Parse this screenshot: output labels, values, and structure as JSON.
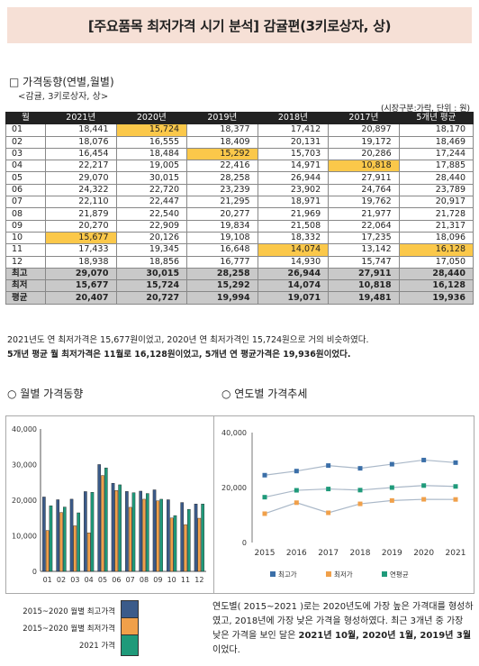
{
  "title": "[주요품목 최저가격 시기 분석] 감귤편(3키로상자, 상)",
  "section1": {
    "heading": "□ 가격동향(연별,월별)",
    "sub": "<감귤, 3키로상자, 상>",
    "unit": "(시장구분:가락, 단위 : 원)"
  },
  "table": {
    "headers": [
      "월",
      "2021년",
      "2020년",
      "2019년",
      "2018년",
      "2017년",
      "5개년 평균"
    ],
    "rows": [
      [
        "01",
        "18,441",
        "15,724",
        "18,377",
        "17,412",
        "20,897",
        "18,170"
      ],
      [
        "02",
        "18,076",
        "16,555",
        "18,409",
        "20,131",
        "19,172",
        "18,469"
      ],
      [
        "03",
        "16,454",
        "18,484",
        "15,292",
        "15,703",
        "20,286",
        "17,244"
      ],
      [
        "04",
        "22,217",
        "19,005",
        "22,416",
        "14,971",
        "10,818",
        "17,885"
      ],
      [
        "05",
        "29,070",
        "30,015",
        "28,258",
        "26,944",
        "27,911",
        "28,440"
      ],
      [
        "06",
        "24,322",
        "22,720",
        "23,239",
        "23,902",
        "24,764",
        "23,789"
      ],
      [
        "07",
        "22,110",
        "22,447",
        "21,295",
        "18,971",
        "19,762",
        "20,917"
      ],
      [
        "08",
        "21,879",
        "22,540",
        "20,277",
        "21,969",
        "21,977",
        "21,728"
      ],
      [
        "09",
        "20,270",
        "22,909",
        "19,834",
        "21,508",
        "22,064",
        "21,317"
      ],
      [
        "10",
        "15,677",
        "20,126",
        "19,108",
        "18,332",
        "17,235",
        "18,096"
      ],
      [
        "11",
        "17,433",
        "19,345",
        "16,648",
        "14,074",
        "13,142",
        "16,128"
      ],
      [
        "12",
        "18,938",
        "18,856",
        "16,777",
        "14,930",
        "15,747",
        "17,050"
      ]
    ],
    "highlights": [
      [
        0,
        2
      ],
      [
        2,
        3
      ],
      [
        3,
        5
      ],
      [
        9,
        1
      ],
      [
        10,
        4
      ],
      [
        10,
        6
      ]
    ],
    "stats": [
      [
        "최고",
        "29,070",
        "30,015",
        "28,258",
        "26,944",
        "27,911",
        "28,440"
      ],
      [
        "최저",
        "15,677",
        "15,724",
        "15,292",
        "14,074",
        "10,818",
        "16,128"
      ],
      [
        "평균",
        "20,407",
        "20,727",
        "19,994",
        "19,071",
        "19,481",
        "19,936"
      ]
    ]
  },
  "notes": {
    "line1": "2021년도 연 최저가격은 15,677원이었고, 2020년 연 최저가격인 15,724원으로 거의 비슷하였다.",
    "line2": "5개년 평균 월 최저가격은 11월로 16,128원이었고, 5개년 연 평균가격은 19,936원이었다."
  },
  "section2": {
    "heading": "○ 월별 가격동향"
  },
  "section3": {
    "heading": "○ 연도별 가격추세"
  },
  "chart_data": [
    {
      "type": "bar",
      "categories": [
        "01",
        "02",
        "03",
        "04",
        "05",
        "06",
        "07",
        "08",
        "09",
        "10",
        "11",
        "12"
      ],
      "series": [
        {
          "name": "2015~2020 월별 최고가격",
          "color": "#3b5b8a",
          "values": [
            20897,
            20131,
            20286,
            22416,
            30015,
            24764,
            22447,
            22540,
            22909,
            20126,
            19345,
            18938
          ]
        },
        {
          "name": "2015~2020 월별 최저가격",
          "color": "#f0a04a",
          "values": [
            11500,
            16555,
            12800,
            10818,
            26944,
            22720,
            18000,
            20277,
            19834,
            15000,
            13142,
            14930
          ]
        },
        {
          "name": "2021 가격",
          "color": "#1f9a7a",
          "values": [
            18441,
            18076,
            16454,
            22217,
            29070,
            24322,
            22110,
            21879,
            20270,
            15677,
            17433,
            18938
          ]
        }
      ],
      "yticks": [
        "0",
        "10,000",
        "20,000",
        "30,000",
        "40,000"
      ],
      "ylim": [
        0,
        40000
      ]
    },
    {
      "type": "line",
      "x": [
        "2015",
        "2016",
        "2017",
        "2018",
        "2019",
        "2020",
        "2021"
      ],
      "series": [
        {
          "name": "최고가",
          "color": "#3b6fa8",
          "values": [
            24500,
            26000,
            28000,
            27000,
            28500,
            30015,
            29070
          ]
        },
        {
          "name": "최저가",
          "color": "#f0a04a",
          "values": [
            10500,
            14500,
            10818,
            14074,
            15292,
            15724,
            15677
          ]
        },
        {
          "name": "연평균",
          "color": "#1f9a7a",
          "values": [
            16500,
            19000,
            19481,
            19071,
            19994,
            20727,
            20407
          ]
        }
      ],
      "yticks": [
        "0",
        "20,000",
        "40,000"
      ],
      "ylim": [
        0,
        40000
      ]
    }
  ],
  "legend": {
    "max": "2015~2020 월별 최고가격",
    "min": "2015~2020 월별 최저가격",
    "cur": "2021 가격"
  },
  "summary": {
    "p1": "연도별( 2015~2021 )로는 2020년도에 가장 높은 가격대를 형성하였고, 2018년에 가장 낮은 가격을 형성하였다. 최근 3개년 중 가장 낮은 가격을 보인 달은 ",
    "p2": "2021년 10월, 2020년 1월, 2019년 3월",
    "p3": "이었다."
  }
}
